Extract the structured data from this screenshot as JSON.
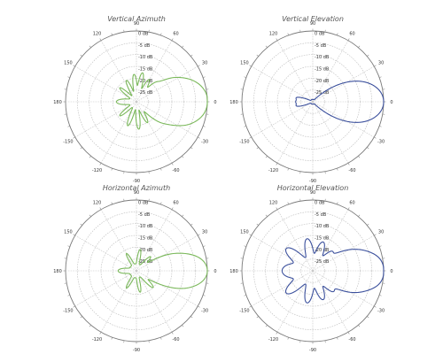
{
  "chart_data": [
    {
      "type": "polar",
      "title": "Vertical Azimuth",
      "series_color": "#7ab85a",
      "angle_labels": [
        "0",
        "30",
        "60",
        "90",
        "120",
        "150",
        "180",
        "-150",
        "-120",
        "-90",
        "-60",
        "-30"
      ],
      "radial_labels": [
        "0 dB",
        "-5 dB",
        "-10 dB",
        "-15 dB",
        "-20 dB",
        "-25 dB"
      ],
      "r_range_db": [
        -30,
        0
      ],
      "grid": true,
      "pattern": {
        "main_lobe": {
          "direction_deg": 0,
          "peak_db": 0,
          "width_deg": 14
        },
        "side_lobes": [
          {
            "direction_deg": 6,
            "peak_db": -14,
            "width_deg": 4
          },
          {
            "direction_deg": 14,
            "peak_db": -16,
            "width_deg": 4
          },
          {
            "direction_deg": 22,
            "peak_db": -18,
            "width_deg": 4
          },
          {
            "direction_deg": 32,
            "peak_db": -19,
            "width_deg": 4
          },
          {
            "direction_deg": 45,
            "peak_db": -21,
            "width_deg": 4
          },
          {
            "direction_deg": 60,
            "peak_db": -20,
            "width_deg": 4
          },
          {
            "direction_deg": 78,
            "peak_db": -18,
            "width_deg": 4
          },
          {
            "direction_deg": 95,
            "peak_db": -19,
            "width_deg": 4
          },
          {
            "direction_deg": 115,
            "peak_db": -21,
            "width_deg": 4
          },
          {
            "direction_deg": 140,
            "peak_db": -22,
            "width_deg": 4
          },
          {
            "direction_deg": 180,
            "peak_db": -23,
            "width_deg": 8
          },
          {
            "direction_deg": -140,
            "peak_db": -22,
            "width_deg": 4
          },
          {
            "direction_deg": -110,
            "peak_db": -20,
            "width_deg": 4
          },
          {
            "direction_deg": -85,
            "peak_db": -19,
            "width_deg": 4
          },
          {
            "direction_deg": -62,
            "peak_db": -21,
            "width_deg": 4
          },
          {
            "direction_deg": -40,
            "peak_db": -22,
            "width_deg": 4
          },
          {
            "direction_deg": -22,
            "peak_db": -20,
            "width_deg": 4
          },
          {
            "direction_deg": -10,
            "peak_db": -18,
            "width_deg": 4
          }
        ],
        "floor_db": -27
      }
    },
    {
      "type": "polar",
      "title": "Vertical Elevation",
      "series_color": "#3a4f9c",
      "angle_labels": [
        "0",
        "30",
        "60",
        "90",
        "120",
        "150",
        "180",
        "-150",
        "-120",
        "-90",
        "-60",
        "-30"
      ],
      "radial_labels": [
        "0 dB",
        "-5 dB",
        "-10 dB",
        "-15 dB",
        "-20 dB",
        "-25 dB"
      ],
      "r_range_db": [
        -30,
        0
      ],
      "grid": true,
      "pattern": {
        "main_lobe": {
          "direction_deg": 0,
          "peak_db": 0,
          "width_deg": 12
        },
        "side_lobes": [
          {
            "direction_deg": 20,
            "peak_db": -25,
            "width_deg": 5
          },
          {
            "direction_deg": -20,
            "peak_db": -25,
            "width_deg": 5
          },
          {
            "direction_deg": 180,
            "peak_db": -24,
            "width_deg": 10
          },
          {
            "direction_deg": 165,
            "peak_db": -26,
            "width_deg": 5
          },
          {
            "direction_deg": -165,
            "peak_db": -26,
            "width_deg": 5
          }
        ],
        "floor_db": -29
      }
    },
    {
      "type": "polar",
      "title": "Horizontal Azimuth",
      "series_color": "#7ab85a",
      "angle_labels": [
        "0",
        "30",
        "60",
        "90",
        "120",
        "150",
        "180",
        "-150",
        "-120",
        "-90",
        "-60",
        "-30"
      ],
      "radial_labels": [
        "0 dB",
        "-5 dB",
        "-10 dB",
        "-15 dB",
        "-20 dB",
        "-25 dB"
      ],
      "r_range_db": [
        -30,
        0
      ],
      "grid": true,
      "pattern": {
        "main_lobe": {
          "direction_deg": 0,
          "peak_db": 0,
          "width_deg": 10
        },
        "side_lobes": [
          {
            "direction_deg": 10,
            "peak_db": -18,
            "width_deg": 4
          },
          {
            "direction_deg": 25,
            "peak_db": -21,
            "width_deg": 4
          },
          {
            "direction_deg": 45,
            "peak_db": -23,
            "width_deg": 4
          },
          {
            "direction_deg": 80,
            "peak_db": -22,
            "width_deg": 4
          },
          {
            "direction_deg": 120,
            "peak_db": -23,
            "width_deg": 4
          },
          {
            "direction_deg": 180,
            "peak_db": -24,
            "width_deg": 8
          },
          {
            "direction_deg": -120,
            "peak_db": -23,
            "width_deg": 4
          },
          {
            "direction_deg": -80,
            "peak_db": -22,
            "width_deg": 4
          },
          {
            "direction_deg": -45,
            "peak_db": -21,
            "width_deg": 4
          },
          {
            "direction_deg": -20,
            "peak_db": -20,
            "width_deg": 4
          }
        ],
        "floor_db": -27
      }
    },
    {
      "type": "polar",
      "title": "Horizontal Elevation",
      "series_color": "#3a4f9c",
      "angle_labels": [
        "0",
        "30",
        "60",
        "90",
        "120",
        "150",
        "180",
        "-150",
        "-120",
        "-90",
        "-60",
        "-30"
      ],
      "radial_labels": [
        "0 dB",
        "-5 dB",
        "-10 dB",
        "-15 dB",
        "-20 dB",
        "-25 dB"
      ],
      "r_range_db": [
        -30,
        0
      ],
      "grid": true,
      "pattern": {
        "main_lobe": {
          "direction_deg": 0,
          "peak_db": 0,
          "width_deg": 12
        },
        "side_lobes": [
          {
            "direction_deg": 10,
            "peak_db": -12,
            "width_deg": 5
          },
          {
            "direction_deg": 25,
            "peak_db": -17,
            "width_deg": 6
          },
          {
            "direction_deg": 45,
            "peak_db": -20,
            "width_deg": 5
          },
          {
            "direction_deg": 70,
            "peak_db": -18,
            "width_deg": 6
          },
          {
            "direction_deg": 100,
            "peak_db": -17,
            "width_deg": 6
          },
          {
            "direction_deg": 140,
            "peak_db": -16,
            "width_deg": 7
          },
          {
            "direction_deg": 180,
            "peak_db": -18,
            "width_deg": 12
          },
          {
            "direction_deg": -140,
            "peak_db": -16,
            "width_deg": 7
          },
          {
            "direction_deg": -100,
            "peak_db": -17,
            "width_deg": 6
          },
          {
            "direction_deg": -70,
            "peak_db": -18,
            "width_deg": 6
          },
          {
            "direction_deg": -45,
            "peak_db": -19,
            "width_deg": 5
          },
          {
            "direction_deg": -25,
            "peak_db": -16,
            "width_deg": 6
          },
          {
            "direction_deg": -10,
            "peak_db": -11,
            "width_deg": 5
          }
        ],
        "floor_db": -24
      }
    }
  ]
}
